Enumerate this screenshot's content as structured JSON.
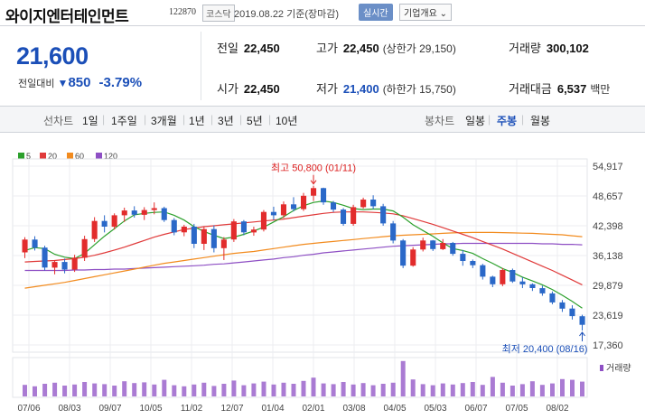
{
  "header": {
    "name": "와이지엔터테인먼트",
    "code": "122870",
    "market": "코스닥",
    "date": "2019.08.22 기준(장마감)",
    "realtime_btn": "실시간",
    "company_btn": "기업개요 ⌄"
  },
  "quote": {
    "price": "21,600",
    "change_label": "전일대비",
    "change_arrow": "▼",
    "change_amount": "850",
    "change_pct": "-3.79%",
    "prev_close_label": "전일",
    "prev_close": "22,450",
    "open_label": "시가",
    "open": "22,450",
    "high_label": "고가",
    "high": "22,450",
    "upper_limit": "(상한가 29,150)",
    "low_label": "저가",
    "low": "21,400",
    "lower_limit": "(하한가 15,750)",
    "volume_label": "거래량",
    "volume": "300,102",
    "amount_label": "거래대금",
    "amount": "6,537",
    "amount_unit": "백만"
  },
  "toolbar": {
    "line_label": "선차트",
    "ranges": [
      "1일",
      "1주일",
      "3개월",
      "1년",
      "3년",
      "5년",
      "10년"
    ],
    "candle_label": "봉차트",
    "candles": [
      "일봉",
      "주봉",
      "월봉"
    ],
    "candle_selected": 1
  },
  "colors": {
    "accent": "#1b4fb8",
    "up": "#e22c2c",
    "down": "#2a68c8",
    "ma5": "#2ca02c",
    "ma20": "#e03a3a",
    "ma60": "#f28b1e",
    "ma120": "#8e4fc4",
    "volume": "#8e4fc4"
  },
  "chart_data": {
    "type": "candlestick",
    "title": "",
    "legend": [
      {
        "name": "5",
        "color": "#2ca02c"
      },
      {
        "name": "20",
        "color": "#e03a3a"
      },
      {
        "name": "60",
        "color": "#f28b1e"
      },
      {
        "name": "120",
        "color": "#8e4fc4"
      }
    ],
    "ylim": [
      17360,
      54917
    ],
    "y_ticks": [
      "54,917",
      "48,657",
      "42,398",
      "36,138",
      "29,879",
      "23,619",
      "17,360"
    ],
    "x_ticks": [
      "07/06",
      "08/03",
      "09/07",
      "10/05",
      "11/02",
      "12/07",
      "01/04",
      "02/01",
      "03/08",
      "04/05",
      "05/03",
      "06/07",
      "07/05",
      "08/02"
    ],
    "high_annotation": "최고 50,800 (01/11)",
    "low_annotation": "최저 20,400 (08/16)",
    "volume_label": "거래량",
    "candles": [
      [
        36800,
        40000,
        35600,
        39500
      ],
      [
        39500,
        40200,
        37200,
        37800
      ],
      [
        37800,
        38200,
        33000,
        33600
      ],
      [
        33600,
        35200,
        32200,
        34800
      ],
      [
        34800,
        35500,
        32400,
        33200
      ],
      [
        33200,
        36300,
        32700,
        35700
      ],
      [
        35700,
        40300,
        35000,
        39600
      ],
      [
        39600,
        44200,
        39000,
        43400
      ],
      [
        43400,
        44600,
        41000,
        42200
      ],
      [
        42200,
        45000,
        41600,
        44600
      ],
      [
        44600,
        46200,
        43200,
        45600
      ],
      [
        45600,
        46500,
        44100,
        44700
      ],
      [
        44700,
        46300,
        43600,
        45700
      ],
      [
        45700,
        47300,
        44800,
        46100
      ],
      [
        46100,
        46400,
        43200,
        43600
      ],
      [
        43600,
        44000,
        40400,
        41000
      ],
      [
        41000,
        42600,
        40200,
        42200
      ],
      [
        42200,
        42800,
        37700,
        38600
      ],
      [
        38600,
        42300,
        37300,
        41700
      ],
      [
        41700,
        42500,
        36800,
        37700
      ],
      [
        37700,
        40000,
        35200,
        39500
      ],
      [
        39500,
        43800,
        39000,
        43300
      ],
      [
        43300,
        43600,
        40400,
        41000
      ],
      [
        41000,
        42200,
        40300,
        41600
      ],
      [
        41600,
        45700,
        41200,
        45300
      ],
      [
        45300,
        46400,
        43600,
        44600
      ],
      [
        44600,
        47500,
        44000,
        46900
      ],
      [
        46900,
        48400,
        45400,
        45900
      ],
      [
        45900,
        49300,
        45500,
        48700
      ],
      [
        48700,
        50800,
        47600,
        50300
      ],
      [
        50300,
        50400,
        46800,
        47300
      ],
      [
        47300,
        47600,
        45300,
        45800
      ],
      [
        45800,
        46100,
        42400,
        42800
      ],
      [
        42800,
        46800,
        42400,
        46300
      ],
      [
        46300,
        48300,
        46000,
        47900
      ],
      [
        47900,
        48800,
        45900,
        46500
      ],
      [
        46500,
        47000,
        42400,
        42900
      ],
      [
        42900,
        43400,
        38700,
        39300
      ],
      [
        39300,
        39600,
        33500,
        34000
      ],
      [
        34000,
        37900,
        33800,
        37400
      ],
      [
        37400,
        39900,
        37000,
        39300
      ],
      [
        39300,
        39400,
        37100,
        37500
      ],
      [
        37500,
        39600,
        37300,
        38800
      ],
      [
        38800,
        39000,
        36100,
        36500
      ],
      [
        36500,
        37300,
        34000,
        35000
      ],
      [
        35000,
        35300,
        33500,
        34100
      ],
      [
        34100,
        34400,
        31100,
        31700
      ],
      [
        31700,
        31900,
        29500,
        30100
      ],
      [
        30100,
        33500,
        29700,
        33100
      ],
      [
        33100,
        33400,
        30400,
        30700
      ],
      [
        30700,
        31600,
        29300,
        30100
      ],
      [
        30100,
        30300,
        28700,
        29300
      ],
      [
        29300,
        29800,
        27700,
        28200
      ],
      [
        28200,
        28600,
        25900,
        26300
      ],
      [
        26300,
        26800,
        24300,
        25000
      ],
      [
        25000,
        25700,
        22700,
        23400
      ],
      [
        23400,
        23700,
        20400,
        21600
      ]
    ],
    "ma5": [
      37200,
      37800,
      37600,
      36400,
      35800,
      35500,
      36600,
      38400,
      40200,
      41800,
      43400,
      44700,
      45000,
      45200,
      45300,
      44600,
      43600,
      42200,
      41200,
      40400,
      39700,
      40000,
      40600,
      41300,
      42100,
      43200,
      44300,
      45600,
      46600,
      47300,
      47600,
      47300,
      46700,
      46000,
      45800,
      45900,
      45900,
      45500,
      44200,
      42600,
      41400,
      40200,
      38800,
      37600,
      37200,
      36600,
      35500,
      34500,
      33400,
      32600,
      31600,
      30800,
      30000,
      29000,
      27800,
      26500,
      25100
    ],
    "ma20": [
      34800,
      34900,
      35000,
      35100,
      35300,
      35500,
      35800,
      36200,
      36700,
      37300,
      37900,
      38600,
      39300,
      40000,
      40600,
      41100,
      41600,
      41900,
      42200,
      42400,
      42600,
      42800,
      43000,
      43200,
      43400,
      43600,
      43800,
      44100,
      44400,
      44700,
      45000,
      45200,
      45300,
      45300,
      45300,
      45200,
      45100,
      44900,
      44500,
      43900,
      43300,
      42700,
      42000,
      41300,
      40600,
      39900,
      39100,
      38300,
      37500,
      36600,
      35700,
      34800,
      33900,
      33000,
      32000,
      31000,
      30000
    ],
    "ma60": [
      29300,
      29600,
      29900,
      30200,
      30500,
      30900,
      31300,
      31700,
      32100,
      32500,
      32900,
      33300,
      33700,
      34100,
      34500,
      34800,
      35100,
      35400,
      35700,
      36000,
      36300,
      36600,
      36800,
      37000,
      37300,
      37600,
      37900,
      38200,
      38500,
      38700,
      38900,
      39100,
      39300,
      39500,
      39700,
      39900,
      40100,
      40300,
      40400,
      40500,
      40600,
      40700,
      40800,
      40900,
      40950,
      41000,
      41000,
      41000,
      40950,
      40900,
      40850,
      40800,
      40700,
      40600,
      40500,
      40300,
      40100
    ],
    "ma120": [
      33000,
      33000,
      33000,
      33000,
      33000,
      33100,
      33100,
      33200,
      33200,
      33300,
      33300,
      33400,
      33500,
      33600,
      33700,
      33800,
      33900,
      34000,
      34100,
      34300,
      34400,
      34600,
      34800,
      35000,
      35200,
      35400,
      35700,
      35900,
      36200,
      36400,
      36700,
      36900,
      37100,
      37300,
      37500,
      37700,
      37900,
      38100,
      38200,
      38300,
      38400,
      38500,
      38600,
      38600,
      38700,
      38700,
      38700,
      38700,
      38700,
      38700,
      38700,
      38700,
      38600,
      38600,
      38500,
      38500,
      38400
    ],
    "volume": [
      0.32,
      0.28,
      0.35,
      0.38,
      0.3,
      0.33,
      0.4,
      0.36,
      0.34,
      0.3,
      0.42,
      0.37,
      0.39,
      0.33,
      0.46,
      0.31,
      0.28,
      0.33,
      0.38,
      0.29,
      0.35,
      0.44,
      0.31,
      0.36,
      0.41,
      0.33,
      0.38,
      0.35,
      0.43,
      0.52,
      0.36,
      0.34,
      0.4,
      0.33,
      0.37,
      0.31,
      0.35,
      0.38,
      0.98,
      0.47,
      0.34,
      0.31,
      0.36,
      0.33,
      0.37,
      0.4,
      0.32,
      0.54,
      0.38,
      0.3,
      0.34,
      0.42,
      0.32,
      0.36,
      0.48,
      0.46,
      0.41
    ]
  }
}
